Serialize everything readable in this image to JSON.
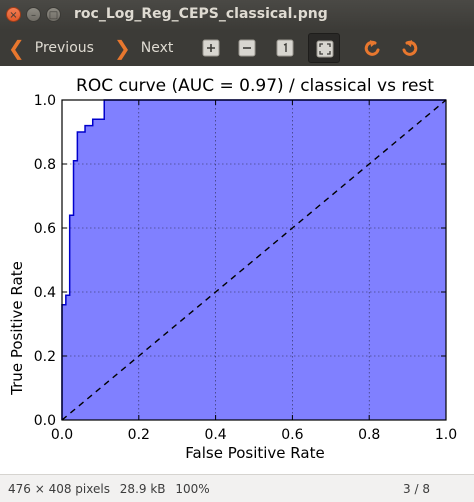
{
  "window": {
    "title": "roc_Log_Reg_CEPS_classical.png"
  },
  "toolbar": {
    "previous_label": "Previous",
    "next_label": "Next"
  },
  "chart_data": {
    "type": "line",
    "title": "ROC curve (AUC = 0.97) / classical vs rest",
    "xlabel": "False Positive Rate",
    "ylabel": "True Positive Rate",
    "xlim": [
      0.0,
      1.0
    ],
    "ylim": [
      0.0,
      1.0
    ],
    "xticks": [
      "0.0",
      "0.2",
      "0.4",
      "0.6",
      "0.8",
      "1.0"
    ],
    "yticks": [
      "0.0",
      "0.2",
      "0.4",
      "0.6",
      "0.8",
      "1.0"
    ],
    "grid": true,
    "fill_color": "#8080ff",
    "line_color": "#0000cc",
    "series": [
      {
        "x": [
          0.0,
          0.0,
          0.01,
          0.01,
          0.02,
          0.02,
          0.03,
          0.03,
          0.04,
          0.04,
          0.06,
          0.06,
          0.08,
          0.08,
          0.11,
          0.11,
          1.0
        ],
        "y": [
          0.0,
          0.36,
          0.36,
          0.39,
          0.39,
          0.64,
          0.64,
          0.81,
          0.81,
          0.9,
          0.9,
          0.92,
          0.92,
          0.94,
          0.94,
          1.0,
          1.0
        ]
      }
    ],
    "diagonal": {
      "x": [
        0,
        1
      ],
      "y": [
        0,
        1
      ],
      "style": "dashed"
    }
  },
  "status": {
    "dimensions": "476 × 408 pixels",
    "size": "28.9 kB",
    "zoom": "100%",
    "position": "3 / 8"
  }
}
